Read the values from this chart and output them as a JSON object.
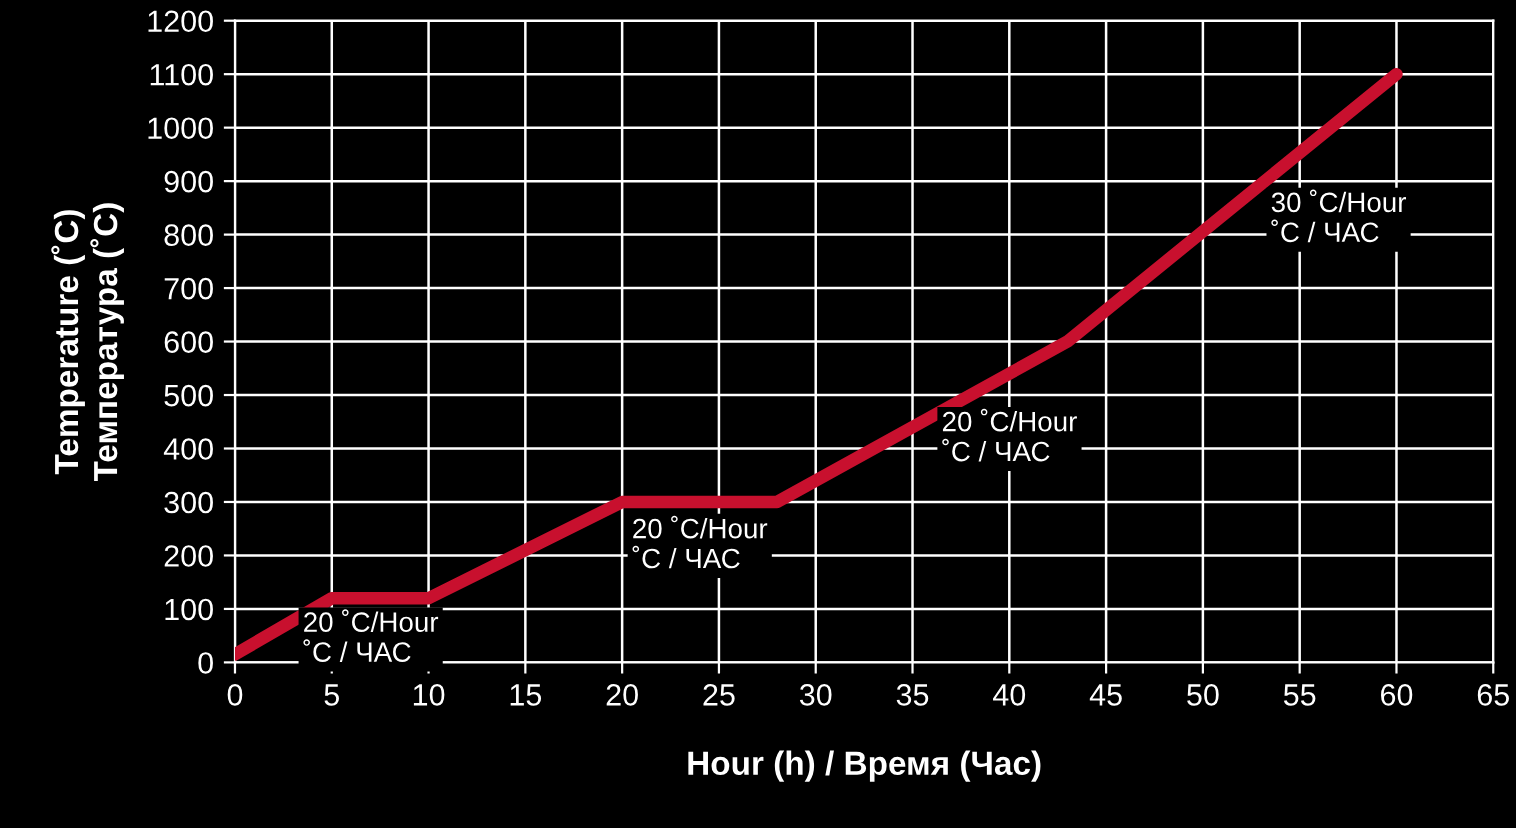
{
  "chart_data": {
    "type": "line",
    "xlabel": "Hour (h) / Время (Час)",
    "ylabel": "Temperature (˚C)\nТемпература (˚C)",
    "x": [
      0,
      5,
      10,
      20,
      28,
      43,
      60
    ],
    "series": [
      {
        "color": "#c8102e",
        "values": [
          15,
          120,
          120,
          300,
          300,
          600,
          1100
        ]
      }
    ],
    "xlim": [
      0,
      65
    ],
    "xticks": [
      0,
      5,
      10,
      15,
      20,
      25,
      30,
      35,
      40,
      45,
      50,
      55,
      60,
      65
    ],
    "ylim": [
      0,
      1200
    ],
    "yticks": [
      0,
      100,
      200,
      300,
      400,
      500,
      600,
      700,
      800,
      900,
      1000,
      1100,
      1200
    ],
    "grid": true,
    "marker": "none",
    "line_style": "solid",
    "annotations": [
      {
        "text": "20 ˚C/Hour\n˚C / ЧАС",
        "x": 3.5,
        "y": 95
      },
      {
        "text": "20 ˚C/Hour\n˚C / ЧАС",
        "x": 20.5,
        "y": 270
      },
      {
        "text": "20 ˚C/Hour\n˚C / ЧАС",
        "x": 36.5,
        "y": 470
      },
      {
        "text": "30 ˚C/Hour\n˚C / ЧАС",
        "x": 53.5,
        "y": 880
      }
    ]
  }
}
